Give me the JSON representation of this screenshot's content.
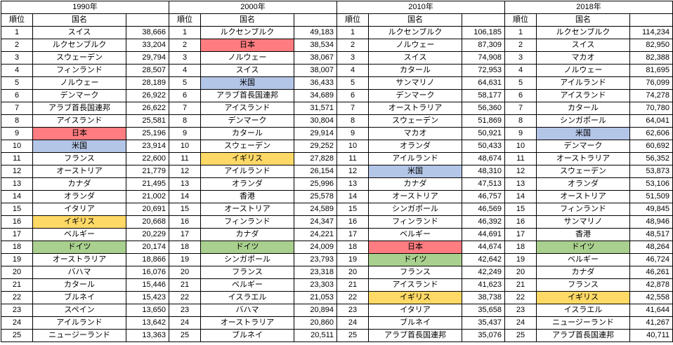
{
  "table": {
    "columns": {
      "rank": "順位",
      "country": "国名",
      "value": ""
    },
    "highlight_colors": {
      "jp": "#ff7c80",
      "us": "#b4c6e7",
      "uk": "#ffd966",
      "de": "#a9d08e"
    },
    "groups": [
      {
        "year": "1990年",
        "rows": [
          [
            "1",
            "スイス",
            "38,666",
            ""
          ],
          [
            "2",
            "ルクセンブルク",
            "33,204",
            ""
          ],
          [
            "3",
            "スウェーデン",
            "29,794",
            ""
          ],
          [
            "4",
            "フィンランド",
            "28,507",
            ""
          ],
          [
            "5",
            "ノルウェー",
            "28,189",
            ""
          ],
          [
            "6",
            "デンマーク",
            "26,922",
            ""
          ],
          [
            "7",
            "アラブ首長国連邦",
            "26,622",
            ""
          ],
          [
            "8",
            "アイスランド",
            "25,581",
            ""
          ],
          [
            "9",
            "日本",
            "25,196",
            "jp"
          ],
          [
            "10",
            "米国",
            "23,914",
            "us"
          ],
          [
            "11",
            "フランス",
            "22,600",
            ""
          ],
          [
            "12",
            "オーストリア",
            "21,779",
            ""
          ],
          [
            "13",
            "カナダ",
            "21,495",
            ""
          ],
          [
            "14",
            "オランダ",
            "21,002",
            ""
          ],
          [
            "15",
            "イタリア",
            "20,691",
            ""
          ],
          [
            "16",
            "イギリス",
            "20,668",
            "uk"
          ],
          [
            "17",
            "ベルギー",
            "20,229",
            ""
          ],
          [
            "18",
            "ドイツ",
            "20,174",
            "de"
          ],
          [
            "19",
            "オーストラリア",
            "18,866",
            ""
          ],
          [
            "20",
            "バハマ",
            "16,076",
            ""
          ],
          [
            "21",
            "カタール",
            "15,446",
            ""
          ],
          [
            "22",
            "ブルネイ",
            "15,423",
            ""
          ],
          [
            "23",
            "スペイン",
            "13,650",
            ""
          ],
          [
            "24",
            "アイルランド",
            "13,642",
            ""
          ],
          [
            "25",
            "ニュージーランド",
            "13,363",
            ""
          ]
        ]
      },
      {
        "year": "2000年",
        "rows": [
          [
            "1",
            "ルクセンブルク",
            "49,183",
            ""
          ],
          [
            "2",
            "日本",
            "38,534",
            "jp"
          ],
          [
            "3",
            "ノルウェー",
            "38,067",
            ""
          ],
          [
            "4",
            "スイス",
            "38,007",
            ""
          ],
          [
            "5",
            "米国",
            "36,433",
            "us"
          ],
          [
            "6",
            "アラブ首長国連邦",
            "34,689",
            ""
          ],
          [
            "7",
            "アイスランド",
            "31,571",
            ""
          ],
          [
            "8",
            "デンマーク",
            "30,804",
            ""
          ],
          [
            "9",
            "カタール",
            "29,914",
            ""
          ],
          [
            "10",
            "スウェーデン",
            "29,252",
            ""
          ],
          [
            "11",
            "イギリス",
            "27,828",
            "uk"
          ],
          [
            "12",
            "アイルランド",
            "26,154",
            ""
          ],
          [
            "13",
            "オランダ",
            "25,996",
            ""
          ],
          [
            "14",
            "香港",
            "25,578",
            ""
          ],
          [
            "15",
            "オーストリア",
            "24,589",
            ""
          ],
          [
            "16",
            "フィンランド",
            "24,347",
            ""
          ],
          [
            "17",
            "カナダ",
            "24,221",
            ""
          ],
          [
            "18",
            "ドイツ",
            "24,009",
            "de"
          ],
          [
            "19",
            "シンガポール",
            "23,793",
            ""
          ],
          [
            "20",
            "フランス",
            "23,318",
            ""
          ],
          [
            "21",
            "ベルギー",
            "23,303",
            ""
          ],
          [
            "22",
            "イスラエル",
            "21,053",
            ""
          ],
          [
            "23",
            "バハマ",
            "20,894",
            ""
          ],
          [
            "24",
            "オーストラリア",
            "20,860",
            ""
          ],
          [
            "25",
            "ブルネイ",
            "20,511",
            ""
          ]
        ]
      },
      {
        "year": "2010年",
        "rows": [
          [
            "1",
            "ルクセンブルク",
            "106,185",
            ""
          ],
          [
            "2",
            "ノルウェー",
            "87,309",
            ""
          ],
          [
            "3",
            "スイス",
            "74,908",
            ""
          ],
          [
            "4",
            "カタール",
            "72,953",
            ""
          ],
          [
            "5",
            "サンマリノ",
            "64,631",
            ""
          ],
          [
            "6",
            "デンマーク",
            "58,177",
            ""
          ],
          [
            "7",
            "オーストラリア",
            "56,360",
            ""
          ],
          [
            "8",
            "スウェーデン",
            "51,869",
            ""
          ],
          [
            "9",
            "マカオ",
            "50,921",
            ""
          ],
          [
            "10",
            "オランダ",
            "50,433",
            ""
          ],
          [
            "11",
            "アイルランド",
            "48,674",
            ""
          ],
          [
            "12",
            "米国",
            "48,310",
            "us"
          ],
          [
            "13",
            "カナダ",
            "47,513",
            ""
          ],
          [
            "14",
            "オーストリア",
            "46,757",
            ""
          ],
          [
            "15",
            "シンガポール",
            "46,569",
            ""
          ],
          [
            "16",
            "フィンランド",
            "46,392",
            ""
          ],
          [
            "17",
            "ベルギー",
            "44,691",
            ""
          ],
          [
            "18",
            "日本",
            "44,674",
            "jp"
          ],
          [
            "19",
            "ドイツ",
            "42,642",
            "de"
          ],
          [
            "20",
            "フランス",
            "42,249",
            ""
          ],
          [
            "21",
            "アイスランド",
            "41,623",
            ""
          ],
          [
            "22",
            "イギリス",
            "38,738",
            "uk"
          ],
          [
            "23",
            "イタリア",
            "35,658",
            ""
          ],
          [
            "24",
            "ブルネイ",
            "35,437",
            ""
          ],
          [
            "25",
            "アラブ首長国連邦",
            "35,076",
            ""
          ]
        ]
      },
      {
        "year": "2018年",
        "rows": [
          [
            "1",
            "ルクセンブルク",
            "114,234",
            ""
          ],
          [
            "2",
            "スイス",
            "82,950",
            ""
          ],
          [
            "3",
            "マカオ",
            "82,388",
            ""
          ],
          [
            "4",
            "ノルウェー",
            "81,695",
            ""
          ],
          [
            "5",
            "アイルランド",
            "76,099",
            ""
          ],
          [
            "6",
            "アイスランド",
            "74,278",
            ""
          ],
          [
            "7",
            "カタール",
            "70,780",
            ""
          ],
          [
            "8",
            "シンガポール",
            "64,041",
            ""
          ],
          [
            "9",
            "米国",
            "62,606",
            "us"
          ],
          [
            "10",
            "デンマーク",
            "60,692",
            ""
          ],
          [
            "11",
            "オーストラリア",
            "56,352",
            ""
          ],
          [
            "12",
            "スウェーデン",
            "53,873",
            ""
          ],
          [
            "13",
            "オランダ",
            "53,106",
            ""
          ],
          [
            "14",
            "オーストリア",
            "51,509",
            ""
          ],
          [
            "15",
            "フィンランド",
            "49,845",
            ""
          ],
          [
            "16",
            "サンマリノ",
            "48,946",
            ""
          ],
          [
            "17",
            "香港",
            "48,517",
            ""
          ],
          [
            "18",
            "ドイツ",
            "48,264",
            "de"
          ],
          [
            "19",
            "ベルギー",
            "46,724",
            ""
          ],
          [
            "20",
            "カナダ",
            "46,261",
            ""
          ],
          [
            "21",
            "フランス",
            "42,878",
            ""
          ],
          [
            "22",
            "イギリス",
            "42,558",
            "uk"
          ],
          [
            "23",
            "イスラエル",
            "41,644",
            ""
          ],
          [
            "24",
            "ニュージーランド",
            "41,267",
            ""
          ],
          [
            "25",
            "アラブ首長国連邦",
            "40,711",
            ""
          ]
        ]
      }
    ]
  }
}
